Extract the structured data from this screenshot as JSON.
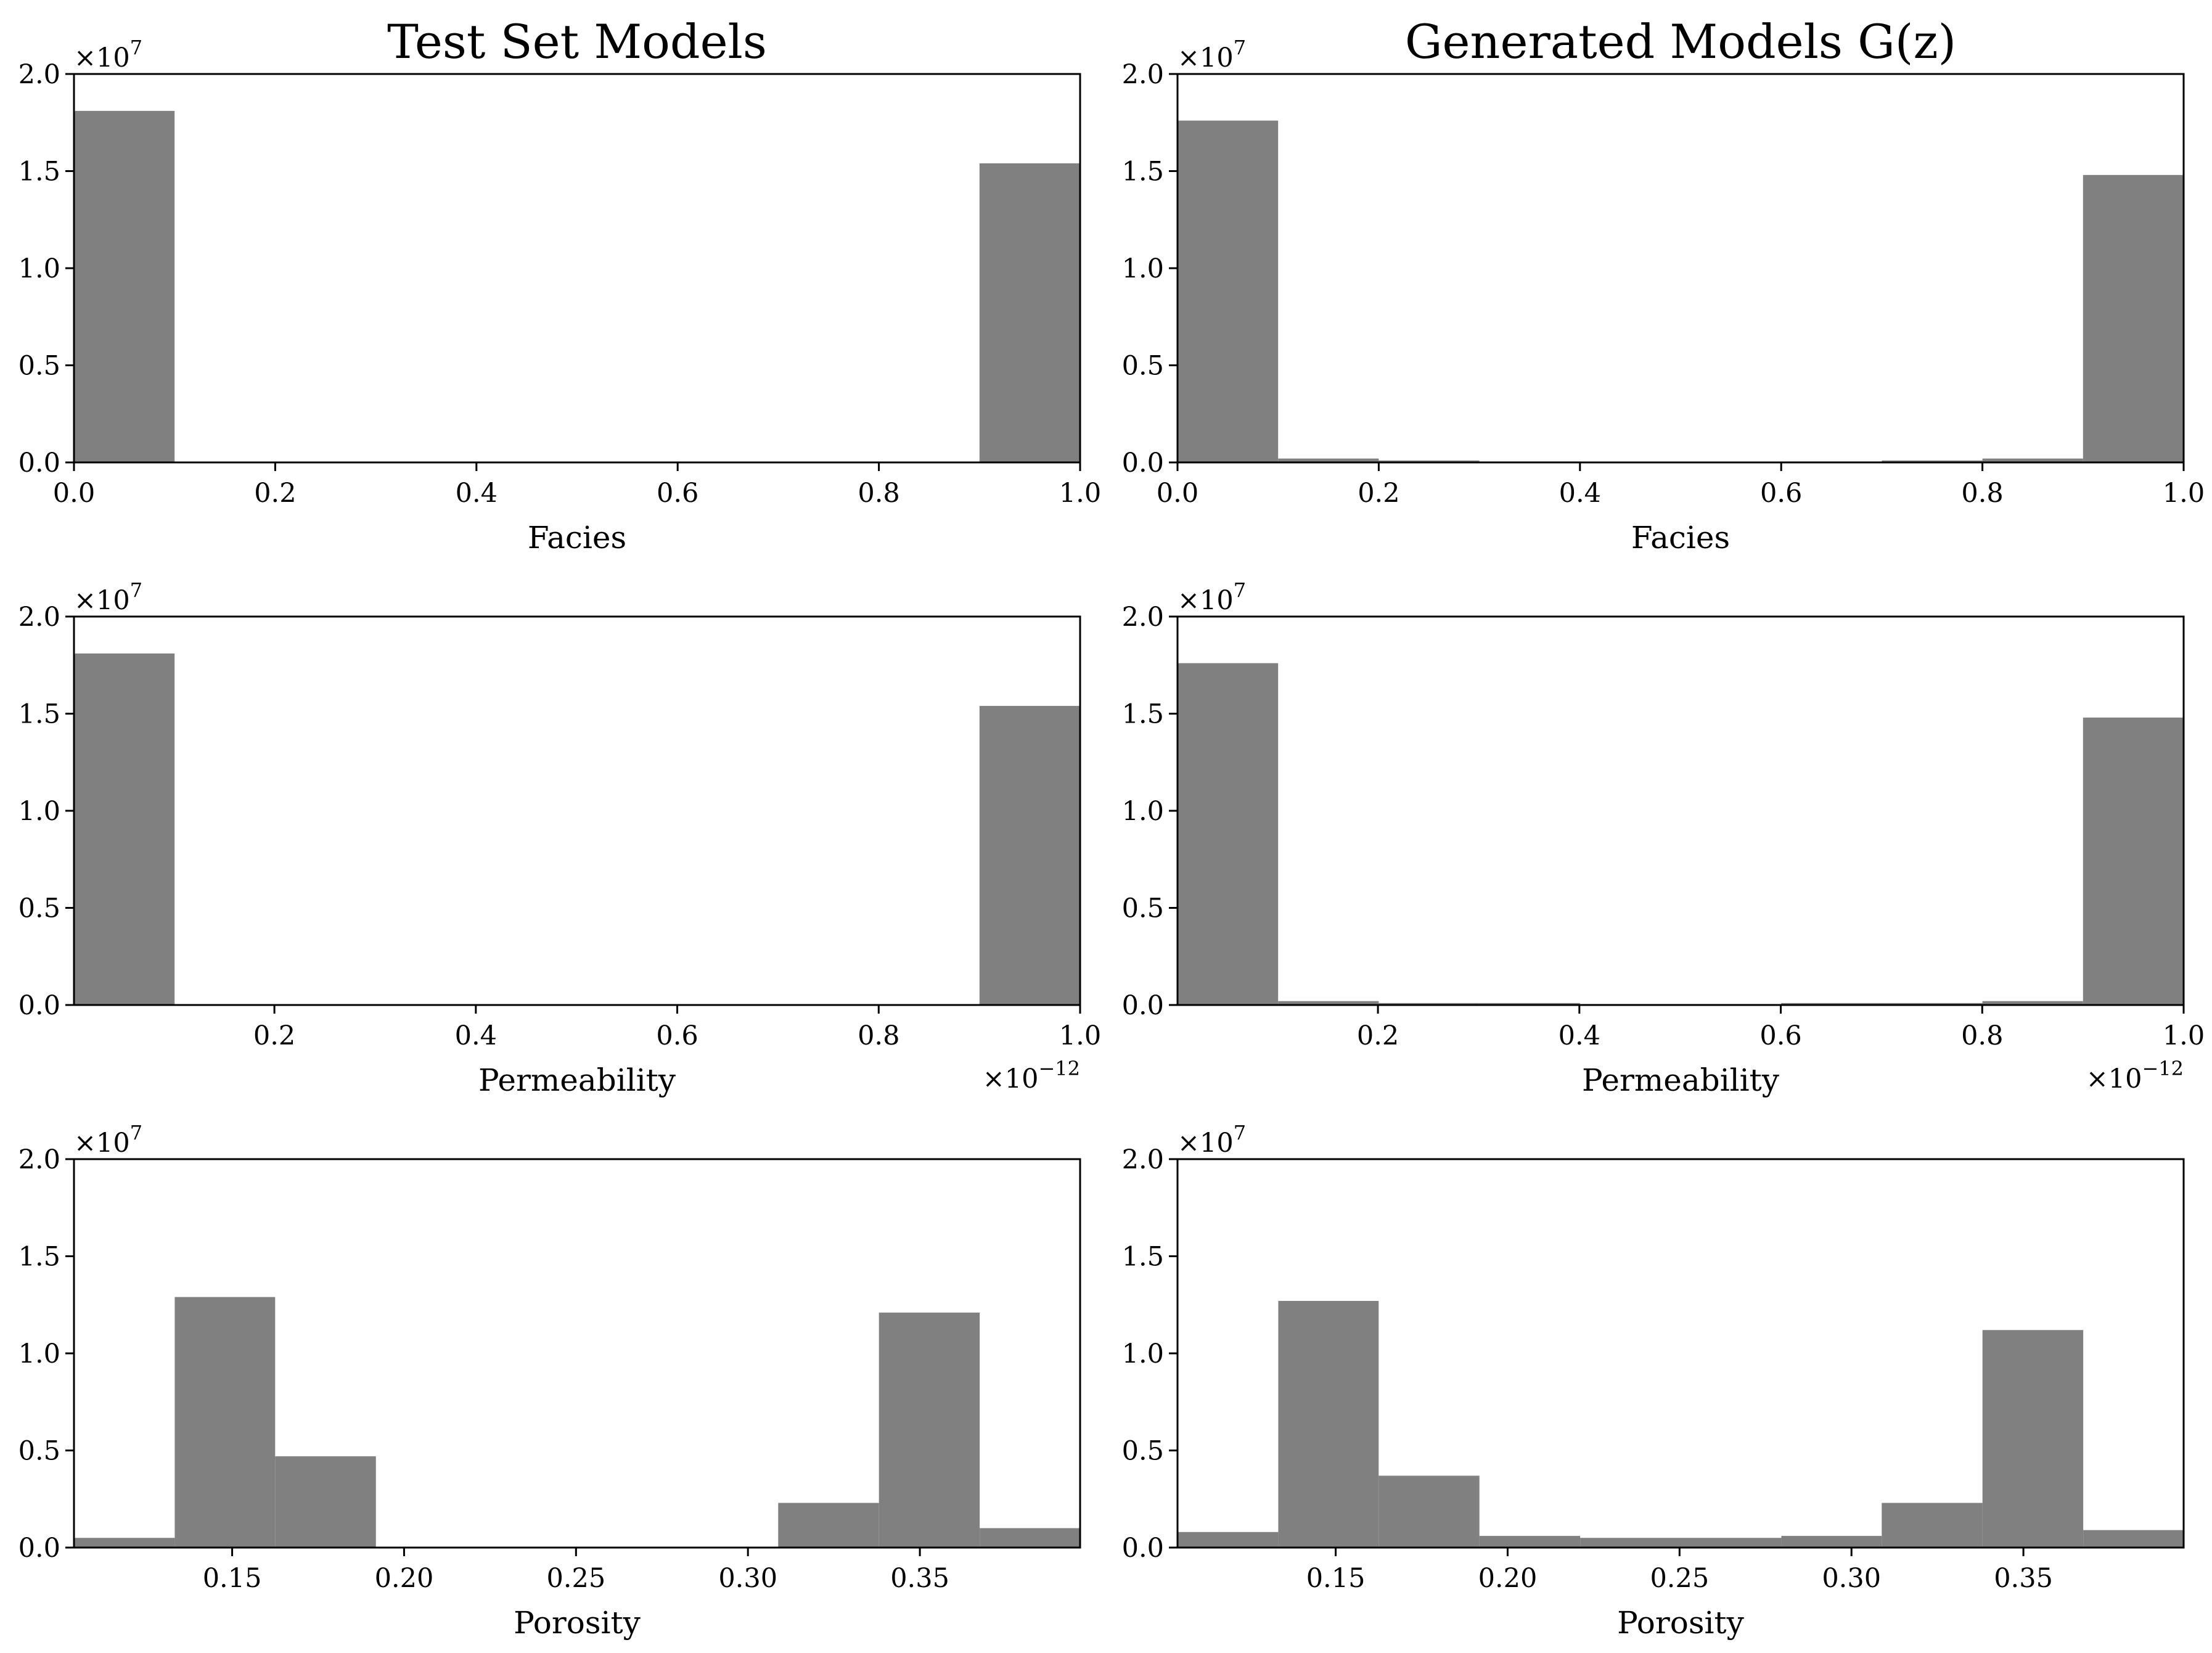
{
  "chart_data": [
    {
      "type": "bar",
      "title": "Test Set Models",
      "xlabel": "Facies",
      "ylabel": "",
      "y_multiplier": "×10^7",
      "x_multiplier": "",
      "xlim": [
        0,
        1
      ],
      "ylim": [
        0,
        2.0
      ],
      "xticks": [
        0.0,
        0.2,
        0.4,
        0.6,
        0.8,
        1.0
      ],
      "xtick_labels": [
        "0.0",
        "0.2",
        "0.4",
        "0.6",
        "0.8",
        "1.0"
      ],
      "yticks": [
        0.0,
        0.5,
        1.0,
        1.5,
        2.0
      ],
      "ytick_labels": [
        "0.0",
        "0.5",
        "1.0",
        "1.5",
        "2.0"
      ],
      "bin_edges": [
        0.0,
        0.1,
        0.2,
        0.3,
        0.4,
        0.5,
        0.6,
        0.7,
        0.8,
        0.9,
        1.0
      ],
      "values": [
        1.81,
        0,
        0,
        0,
        0,
        0,
        0,
        0,
        0,
        1.54
      ],
      "bar_color": "#808080",
      "grid": false
    },
    {
      "type": "bar",
      "title": "Generated Models G(z)",
      "xlabel": "Facies",
      "ylabel": "",
      "y_multiplier": "×10^7",
      "x_multiplier": "",
      "xlim": [
        0,
        1
      ],
      "ylim": [
        0,
        2.0
      ],
      "xticks": [
        0.0,
        0.2,
        0.4,
        0.6,
        0.8,
        1.0
      ],
      "xtick_labels": [
        "0.0",
        "0.2",
        "0.4",
        "0.6",
        "0.8",
        "1.0"
      ],
      "yticks": [
        0.0,
        0.5,
        1.0,
        1.5,
        2.0
      ],
      "ytick_labels": [
        "0.0",
        "0.5",
        "1.0",
        "1.5",
        "2.0"
      ],
      "bin_edges": [
        0.0,
        0.1,
        0.2,
        0.3,
        0.4,
        0.5,
        0.6,
        0.7,
        0.8,
        0.9,
        1.0
      ],
      "values": [
        1.76,
        0.02,
        0.01,
        0.005,
        0.004,
        0.004,
        0.005,
        0.01,
        0.02,
        1.48
      ],
      "bar_color": "#808080",
      "grid": false
    },
    {
      "type": "bar",
      "title": "",
      "xlabel": "Permeability",
      "ylabel": "",
      "y_multiplier": "×10^7",
      "x_multiplier": "×10^−12",
      "xlim": [
        0.001,
        1.0
      ],
      "ylim": [
        0,
        2.0
      ],
      "xticks": [
        0.2,
        0.4,
        0.6,
        0.8,
        1.0
      ],
      "xtick_labels": [
        "0.2",
        "0.4",
        "0.6",
        "0.8",
        "1.0"
      ],
      "yticks": [
        0.0,
        0.5,
        1.0,
        1.5,
        2.0
      ],
      "ytick_labels": [
        "0.0",
        "0.5",
        "1.0",
        "1.5",
        "2.0"
      ],
      "bin_edges": [
        0.001,
        0.1009,
        0.2008,
        0.3007,
        0.4006,
        0.5005,
        0.6004,
        0.7003,
        0.8002,
        0.9001,
        1.0
      ],
      "values": [
        1.81,
        0,
        0,
        0,
        0,
        0,
        0,
        0,
        0,
        1.54
      ],
      "bar_color": "#808080",
      "grid": false
    },
    {
      "type": "bar",
      "title": "",
      "xlabel": "Permeability",
      "ylabel": "",
      "y_multiplier": "×10^7",
      "x_multiplier": "×10^−12",
      "xlim": [
        0.001,
        1.0
      ],
      "ylim": [
        0,
        2.0
      ],
      "xticks": [
        0.2,
        0.4,
        0.6,
        0.8,
        1.0
      ],
      "xtick_labels": [
        "0.2",
        "0.4",
        "0.6",
        "0.8",
        "1.0"
      ],
      "yticks": [
        0.0,
        0.5,
        1.0,
        1.5,
        2.0
      ],
      "ytick_labels": [
        "0.0",
        "0.5",
        "1.0",
        "1.5",
        "2.0"
      ],
      "bin_edges": [
        0.001,
        0.1009,
        0.2008,
        0.3007,
        0.4006,
        0.5005,
        0.6004,
        0.7003,
        0.8002,
        0.9001,
        1.0
      ],
      "values": [
        1.76,
        0.02,
        0.01,
        0.01,
        0.005,
        0.005,
        0.01,
        0.01,
        0.02,
        1.48
      ],
      "bar_color": "#808080",
      "grid": false
    },
    {
      "type": "bar",
      "title": "",
      "xlabel": "Porosity",
      "ylabel": "",
      "y_multiplier": "×10^7",
      "x_multiplier": "",
      "xlim": [
        0.104,
        0.3966
      ],
      "ylim": [
        0,
        2.0
      ],
      "xticks": [
        0.15,
        0.2,
        0.25,
        0.3,
        0.35
      ],
      "xtick_labels": [
        "0.15",
        "0.20",
        "0.25",
        "0.30",
        "0.35"
      ],
      "yticks": [
        0.0,
        0.5,
        1.0,
        1.5,
        2.0
      ],
      "ytick_labels": [
        "0.0",
        "0.5",
        "1.0",
        "1.5",
        "2.0"
      ],
      "bin_edges": [
        0.104,
        0.1333,
        0.1625,
        0.1918,
        0.2211,
        0.2503,
        0.2796,
        0.3088,
        0.3381,
        0.3674,
        0.3966
      ],
      "values": [
        0.05,
        1.29,
        0.47,
        0,
        0,
        0,
        0,
        0.23,
        1.21,
        0.1
      ],
      "bar_color": "#808080",
      "grid": false
    },
    {
      "type": "bar",
      "title": "",
      "xlabel": "Porosity",
      "ylabel": "",
      "y_multiplier": "×10^7",
      "x_multiplier": "",
      "xlim": [
        0.104,
        0.3966
      ],
      "ylim": [
        0,
        2.0
      ],
      "xticks": [
        0.15,
        0.2,
        0.25,
        0.3,
        0.35
      ],
      "xtick_labels": [
        "0.15",
        "0.20",
        "0.25",
        "0.30",
        "0.35"
      ],
      "yticks": [
        0.0,
        0.5,
        1.0,
        1.5,
        2.0
      ],
      "ytick_labels": [
        "0.0",
        "0.5",
        "1.0",
        "1.5",
        "2.0"
      ],
      "bin_edges": [
        0.104,
        0.1333,
        0.1625,
        0.1918,
        0.2211,
        0.2503,
        0.2796,
        0.3088,
        0.3381,
        0.3674,
        0.3966
      ],
      "values": [
        0.08,
        1.27,
        0.37,
        0.06,
        0.05,
        0.05,
        0.06,
        0.23,
        1.12,
        0.09
      ],
      "bar_color": "#808080",
      "grid": false
    }
  ]
}
